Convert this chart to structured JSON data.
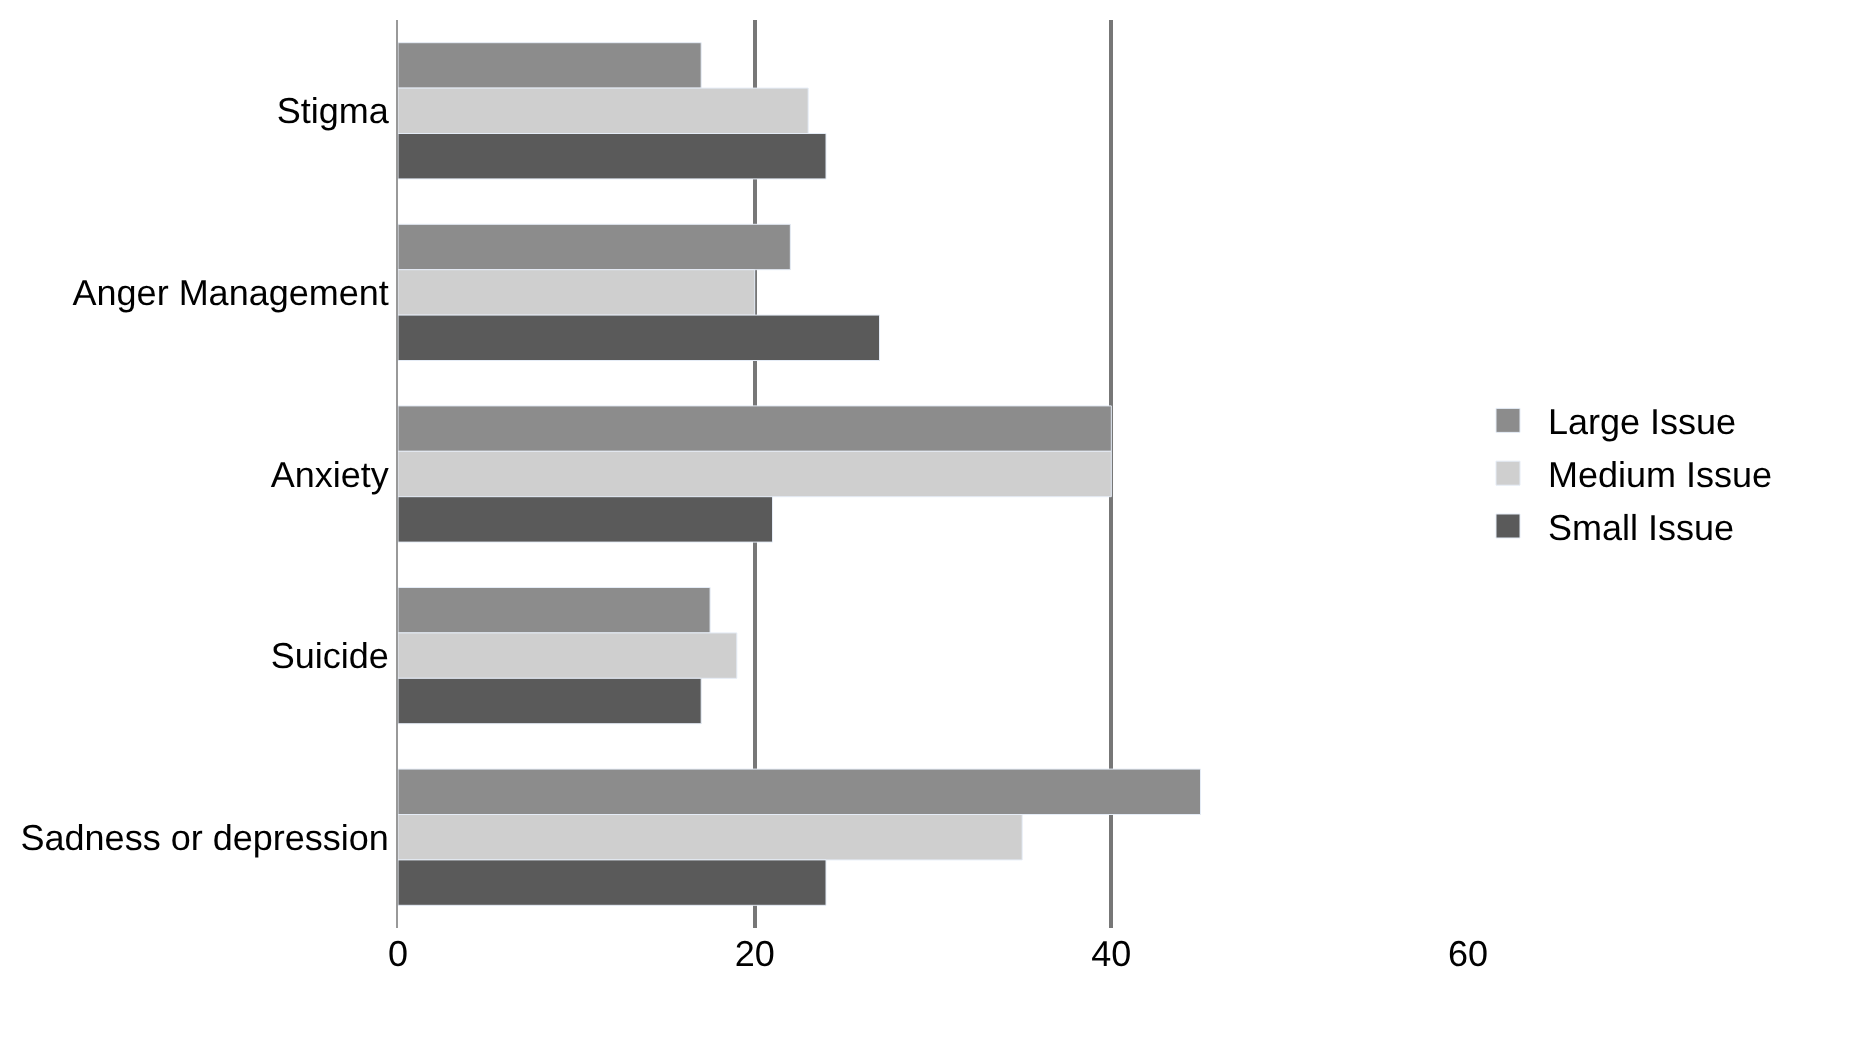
{
  "chart_data": {
    "type": "bar",
    "orientation": "horizontal",
    "categories": [
      "Stigma",
      "Anger Management",
      "Anxiety",
      "Suicide",
      "Sadness or depression"
    ],
    "series": [
      {
        "name": "Large Issue",
        "color": "#8c8c8c",
        "values": [
          17,
          22,
          40,
          17.5,
          45
        ]
      },
      {
        "name": "Medium Issue",
        "color": "#cfcfcf",
        "values": [
          23,
          20,
          40,
          19,
          35
        ]
      },
      {
        "name": "Small Issue",
        "color": "#5a5a5a",
        "values": [
          24,
          27,
          21,
          17,
          24
        ]
      }
    ],
    "xlim": [
      0,
      60
    ],
    "xticks": [
      0,
      20,
      40,
      60
    ],
    "grid": "x",
    "legend": "right"
  }
}
